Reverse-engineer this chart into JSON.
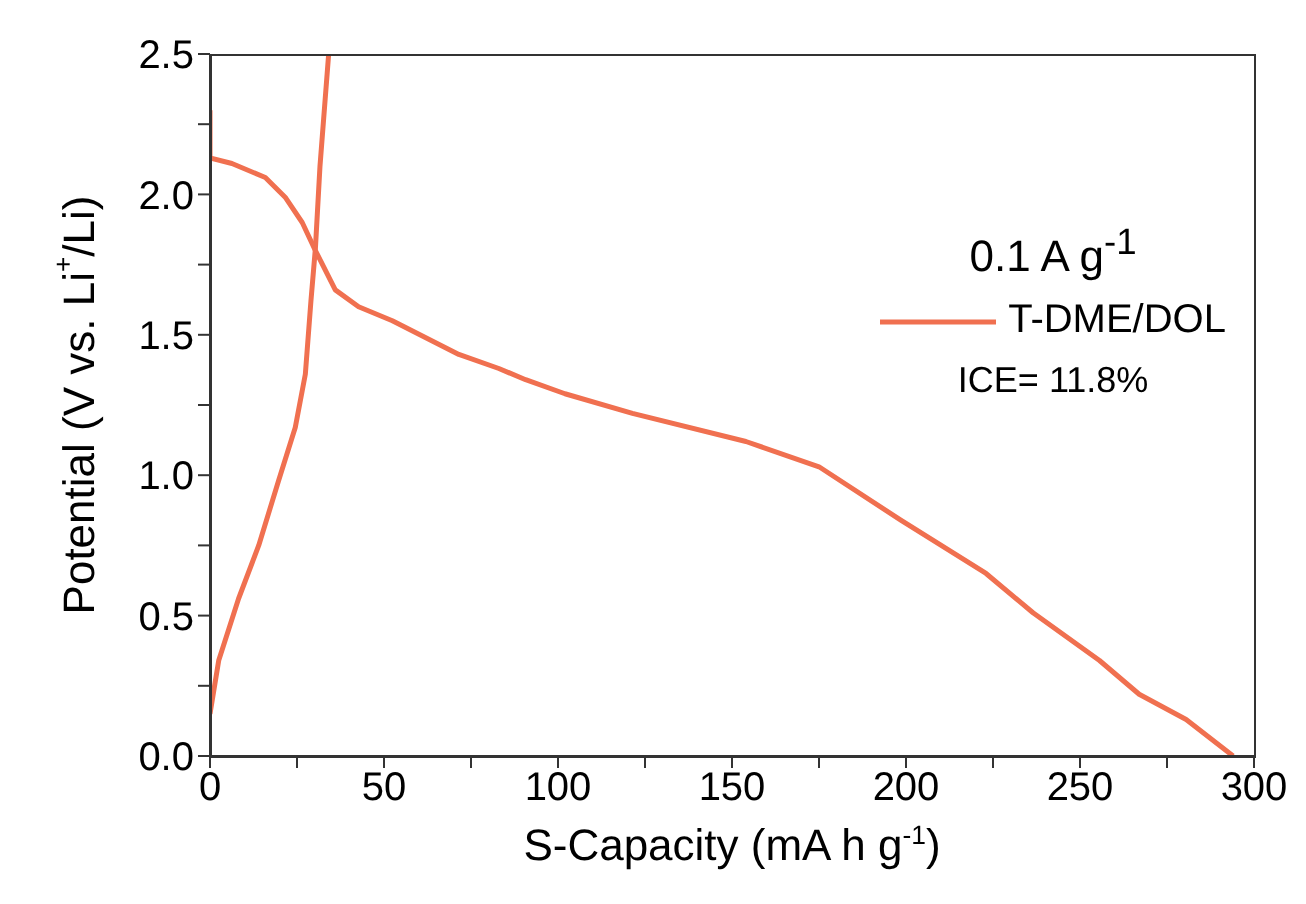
{
  "chart_data": {
    "type": "line",
    "xlabel": "S-Capacity (mA h g$^{-1}$)",
    "ylabel": "Potential (V vs. Li$^{+}$/Li)",
    "legend_title": "0.1 A g$^{-1}$",
    "annotations": [
      "ICE= 11.8%"
    ],
    "xlim": [
      0,
      300
    ],
    "xticks": [
      0,
      {
        "value": 25,
        "label": null
      },
      50,
      {
        "value": 75,
        "label": null
      },
      100,
      {
        "value": 125,
        "label": null
      },
      150,
      {
        "value": 175,
        "label": null
      },
      200,
      {
        "value": 225,
        "label": null
      },
      250,
      {
        "value": 275,
        "label": null
      },
      300
    ],
    "ylim": [
      0,
      2.5
    ],
    "yticks": [
      {
        "value": 0,
        "label": "0.0"
      },
      {
        "value": 0.25,
        "label": null
      },
      {
        "value": 0.5,
        "label": "0.5"
      },
      {
        "value": 0.75,
        "label": null
      },
      {
        "value": 1,
        "label": "1.0"
      },
      {
        "value": 1.25,
        "label": null
      },
      {
        "value": 1.5,
        "label": "1.5"
      },
      {
        "value": 1.75,
        "label": null
      },
      {
        "value": 2,
        "label": "2.0"
      },
      {
        "value": 2.25,
        "label": null
      },
      {
        "value": 2.5,
        "label": "2.5"
      }
    ],
    "grid": false,
    "legend": "top right",
    "marker": "none",
    "line_style": "solid",
    "series": [
      {
        "name": "T-DME/DOL",
        "color": "#f07050",
        "x": [
          0,
          0,
          6.3,
          15.9,
          21.6,
          26.5,
          30.3,
          36,
          42.7,
          52.4,
          71.5,
          83,
          90.7,
          102,
          121.4,
          154,
          175,
          198.5,
          223,
          236.5,
          255.6,
          267,
          280.5,
          294
        ],
        "values": [
          2.3,
          2.13,
          2.11,
          2.06,
          1.99,
          1.9,
          1.8,
          1.66,
          1.6,
          1.55,
          1.43,
          1.38,
          1.34,
          1.29,
          1.22,
          1.12,
          1.03,
          0.84,
          0.65,
          0.51,
          0.34,
          0.22,
          0.13,
          0
        ]
      },
      {
        "color": "#f07050",
        "x": [
          0,
          2.5,
          8.2,
          14,
          19.7,
          24.5,
          27.4,
          29,
          30.3,
          31.6,
          33.1,
          34.1
        ],
        "values": [
          0.15,
          0.34,
          0.56,
          0.75,
          0.98,
          1.17,
          1.36,
          1.62,
          1.81,
          2.1,
          2.34,
          2.5
        ]
      }
    ]
  }
}
